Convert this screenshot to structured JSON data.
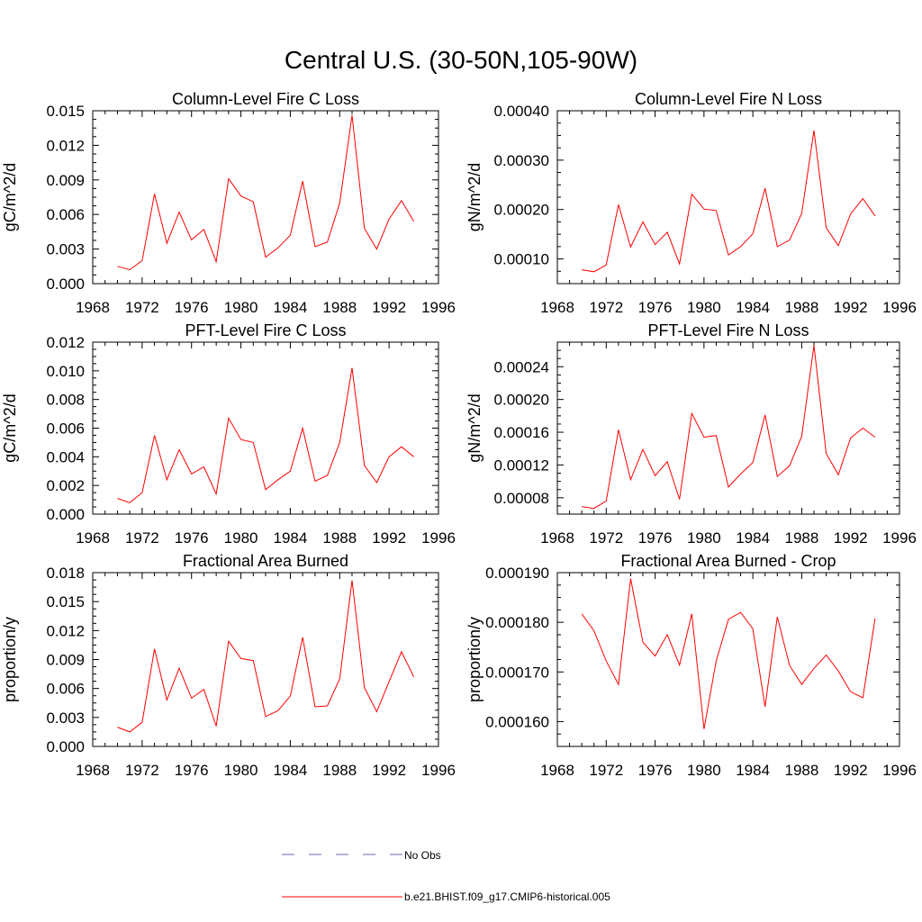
{
  "title": "Central U.S. (30-50N,105-90W)",
  "x_tick_labels": [
    "1968",
    "1972",
    "1976",
    "1980",
    "1984",
    "1988",
    "1992",
    "1996"
  ],
  "legend": {
    "obs_label": "No Obs",
    "obs_color": "#6a6ab4",
    "model_label": "b.e21.BHIST.f09_g17.CMIP6-historical.005",
    "model_color": "#ff0000"
  },
  "chart_data": [
    {
      "type": "line",
      "title": "Column-Level Fire C Loss",
      "ylabel": "gC/m^2/d",
      "xlim": [
        1968,
        1996
      ],
      "ylim": [
        0,
        0.015
      ],
      "y_ticks": [
        0,
        0.003,
        0.006,
        0.009,
        0.012,
        0.015
      ],
      "y_tick_labels": [
        "0.000",
        "0.003",
        "0.006",
        "0.009",
        "0.012",
        "0.015"
      ],
      "x": [
        1970,
        1971,
        1972,
        1973,
        1974,
        1975,
        1976,
        1977,
        1978,
        1979,
        1980,
        1981,
        1982,
        1983,
        1984,
        1985,
        1986,
        1987,
        1988,
        1989,
        1990,
        1991,
        1992,
        1993,
        1994
      ],
      "series": [
        {
          "name": "b.e21.BHIST.f09_g17.CMIP6-historical.005",
          "values": [
            0.0015,
            0.0012,
            0.002,
            0.0078,
            0.0035,
            0.0062,
            0.0038,
            0.0047,
            0.0019,
            0.0091,
            0.0076,
            0.0071,
            0.0023,
            0.0031,
            0.0042,
            0.0089,
            0.0032,
            0.0036,
            0.007,
            0.0146,
            0.0048,
            0.003,
            0.0056,
            0.0072,
            0.0054
          ]
        }
      ]
    },
    {
      "type": "line",
      "title": "Column-Level Fire N Loss",
      "ylabel": "gN/m^2/d",
      "xlim": [
        1968,
        1996
      ],
      "ylim": [
        5e-05,
        0.0004
      ],
      "y_ticks": [
        0.0001,
        0.0002,
        0.0003,
        0.0004
      ],
      "y_tick_labels": [
        "0.00010",
        "0.00020",
        "0.00030",
        "0.00040"
      ],
      "x": [
        1970,
        1971,
        1972,
        1973,
        1974,
        1975,
        1976,
        1977,
        1978,
        1979,
        1980,
        1981,
        1982,
        1983,
        1984,
        1985,
        1986,
        1987,
        1988,
        1989,
        1990,
        1991,
        1992,
        1993,
        1994
      ],
      "series": [
        {
          "name": "b.e21.BHIST.f09_g17.CMIP6-historical.005",
          "values": [
            7.8e-05,
            7.4e-05,
            8.8e-05,
            0.00021,
            0.000124,
            0.000175,
            0.000129,
            0.000154,
            9e-05,
            0.000231,
            0.000201,
            0.000198,
            0.000108,
            0.000125,
            0.000151,
            0.000243,
            0.000125,
            0.000138,
            0.000192,
            0.00036,
            0.000163,
            0.000127,
            0.000191,
            0.000222,
            0.000187
          ]
        }
      ]
    },
    {
      "type": "line",
      "title": "PFT-Level Fire C Loss",
      "ylabel": "gC/m^2/d",
      "xlim": [
        1968,
        1996
      ],
      "ylim": [
        0,
        0.012
      ],
      "y_ticks": [
        0,
        0.002,
        0.004,
        0.006,
        0.008,
        0.01,
        0.012
      ],
      "y_tick_labels": [
        "0.000",
        "0.002",
        "0.004",
        "0.006",
        "0.008",
        "0.010",
        "0.012"
      ],
      "x": [
        1970,
        1971,
        1972,
        1973,
        1974,
        1975,
        1976,
        1977,
        1978,
        1979,
        1980,
        1981,
        1982,
        1983,
        1984,
        1985,
        1986,
        1987,
        1988,
        1989,
        1990,
        1991,
        1992,
        1993,
        1994
      ],
      "series": [
        {
          "name": "b.e21.BHIST.f09_g17.CMIP6-historical.005",
          "values": [
            0.0011,
            0.0008,
            0.0015,
            0.0055,
            0.0024,
            0.0045,
            0.0028,
            0.0033,
            0.0014,
            0.0067,
            0.0052,
            0.005,
            0.0017,
            0.0024,
            0.003,
            0.006,
            0.0023,
            0.0027,
            0.005,
            0.0102,
            0.0034,
            0.0022,
            0.004,
            0.0047,
            0.004
          ]
        }
      ]
    },
    {
      "type": "line",
      "title": "PFT-Level Fire N Loss",
      "ylabel": "gN/m^2/d",
      "xlim": [
        1968,
        1996
      ],
      "ylim": [
        6e-05,
        0.00027
      ],
      "y_ticks": [
        8e-05,
        0.00012,
        0.00016,
        0.0002,
        0.00024
      ],
      "y_tick_labels": [
        "0.00008",
        "0.00012",
        "0.00016",
        "0.00020",
        "0.00024"
      ],
      "x": [
        1970,
        1971,
        1972,
        1973,
        1974,
        1975,
        1976,
        1977,
        1978,
        1979,
        1980,
        1981,
        1982,
        1983,
        1984,
        1985,
        1986,
        1987,
        1988,
        1989,
        1990,
        1991,
        1992,
        1993,
        1994
      ],
      "series": [
        {
          "name": "b.e21.BHIST.f09_g17.CMIP6-historical.005",
          "values": [
            6.9e-05,
            6.7e-05,
            7.6e-05,
            0.000163,
            0.000102,
            0.000139,
            0.000107,
            0.000124,
            7.8e-05,
            0.000183,
            0.000154,
            0.000156,
            9.3e-05,
            0.000109,
            0.000123,
            0.000181,
            0.000106,
            0.000119,
            0.000155,
            0.000266,
            0.000134,
            0.000108,
            0.000153,
            0.000165,
            0.000154
          ]
        }
      ]
    },
    {
      "type": "line",
      "title": "Fractional Area Burned",
      "ylabel": "proportion/y",
      "xlim": [
        1968,
        1996
      ],
      "ylim": [
        0,
        0.018
      ],
      "y_ticks": [
        0,
        0.003,
        0.006,
        0.009,
        0.012,
        0.015,
        0.018
      ],
      "y_tick_labels": [
        "0.000",
        "0.003",
        "0.006",
        "0.009",
        "0.012",
        "0.015",
        "0.018"
      ],
      "x": [
        1970,
        1971,
        1972,
        1973,
        1974,
        1975,
        1976,
        1977,
        1978,
        1979,
        1980,
        1981,
        1982,
        1983,
        1984,
        1985,
        1986,
        1987,
        1988,
        1989,
        1990,
        1991,
        1992,
        1993,
        1994
      ],
      "series": [
        {
          "name": "b.e21.BHIST.f09_g17.CMIP6-historical.005",
          "values": [
            0.002,
            0.0015,
            0.0025,
            0.0101,
            0.0048,
            0.0081,
            0.005,
            0.0059,
            0.0021,
            0.0109,
            0.0091,
            0.0089,
            0.0031,
            0.0037,
            0.0052,
            0.0113,
            0.0041,
            0.0042,
            0.007,
            0.0172,
            0.0061,
            0.0036,
            0.0067,
            0.0098,
            0.0072
          ]
        }
      ]
    },
    {
      "type": "line",
      "title": "Fractional Area Burned - Crop",
      "ylabel": "proportion/y",
      "xlim": [
        1968,
        1996
      ],
      "ylim": [
        0.000155,
        0.00019
      ],
      "y_ticks": [
        0.00016,
        0.00017,
        0.00018,
        0.00019
      ],
      "y_tick_labels": [
        "0.000160",
        "0.000170",
        "0.000180",
        "0.000190"
      ],
      "x": [
        1970,
        1971,
        1972,
        1973,
        1974,
        1975,
        1976,
        1977,
        1978,
        1979,
        1980,
        1981,
        1982,
        1983,
        1984,
        1985,
        1986,
        1987,
        1988,
        1989,
        1990,
        1991,
        1992,
        1993,
        1994
      ],
      "series": [
        {
          "name": "b.e21.BHIST.f09_g17.CMIP6-historical.005",
          "values": [
            0.0001817,
            0.0001783,
            0.0001722,
            0.0001675,
            0.0001888,
            0.000176,
            0.0001732,
            0.0001775,
            0.0001714,
            0.0001817,
            0.0001585,
            0.0001722,
            0.0001806,
            0.000182,
            0.0001787,
            0.000163,
            0.0001811,
            0.0001713,
            0.0001675,
            0.0001707,
            0.0001734,
            0.0001702,
            0.000166,
            0.0001648,
            0.0001808
          ]
        }
      ]
    }
  ]
}
